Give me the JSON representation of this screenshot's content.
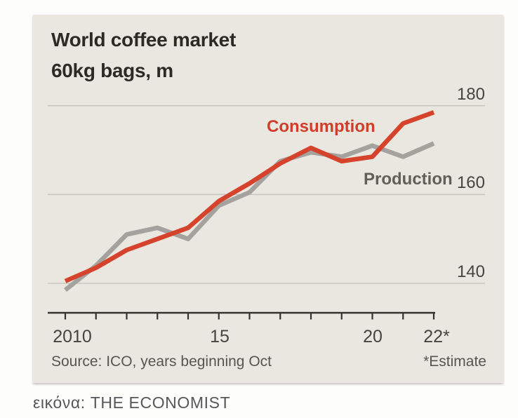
{
  "page": {
    "caption": "εικόνα: THE ECONOMIST"
  },
  "card": {
    "title": "World coffee market",
    "subtitle": "60kg bags, m",
    "source": "Source: ICO, years beginning Oct",
    "estimate_note": "*Estimate"
  },
  "colors": {
    "card_bg": "#e9e7e0",
    "consumption": "#d6432c",
    "production": "#a3a29e",
    "axis": "#33322c",
    "gridline": "#c9c7bf",
    "text_dark": "#2b2a25",
    "text_muted": "#56554f"
  },
  "chart_data": {
    "type": "line",
    "title": "World coffee market",
    "subtitle": "60kg bags, m",
    "x_label_note": "years beginning Oct, 2022 is estimate",
    "x": [
      2010,
      2011,
      2012,
      2013,
      2014,
      2015,
      2016,
      2017,
      2018,
      2019,
      2020,
      2021,
      2022
    ],
    "series": [
      {
        "name": "Consumption",
        "color_key": "consumption",
        "values": [
          140.5,
          143.5,
          147.5,
          150,
          152.5,
          158.5,
          162.5,
          167,
          170.5,
          167.5,
          168.5,
          176,
          178.5
        ]
      },
      {
        "name": "Production",
        "color_key": "production",
        "values": [
          138.5,
          144,
          151,
          152.5,
          150,
          157.5,
          160.5,
          167.5,
          169.5,
          168.5,
          171,
          168.5,
          171.5
        ]
      }
    ],
    "x_tick_labels": [
      {
        "year": 2010,
        "label": "2010"
      },
      {
        "year": 2015,
        "label": "15"
      },
      {
        "year": 2020,
        "label": "20"
      },
      {
        "year": 2022,
        "label": "22*"
      }
    ],
    "y_gridlines": [
      {
        "value": 180,
        "label": "180"
      },
      {
        "value": 160,
        "label": "160"
      },
      {
        "value": 140,
        "label": "140"
      }
    ],
    "xlim": [
      2010,
      2022
    ],
    "ylim": [
      134,
      183
    ],
    "grid": "horizontal-only",
    "legend_position": "inline-labels"
  }
}
